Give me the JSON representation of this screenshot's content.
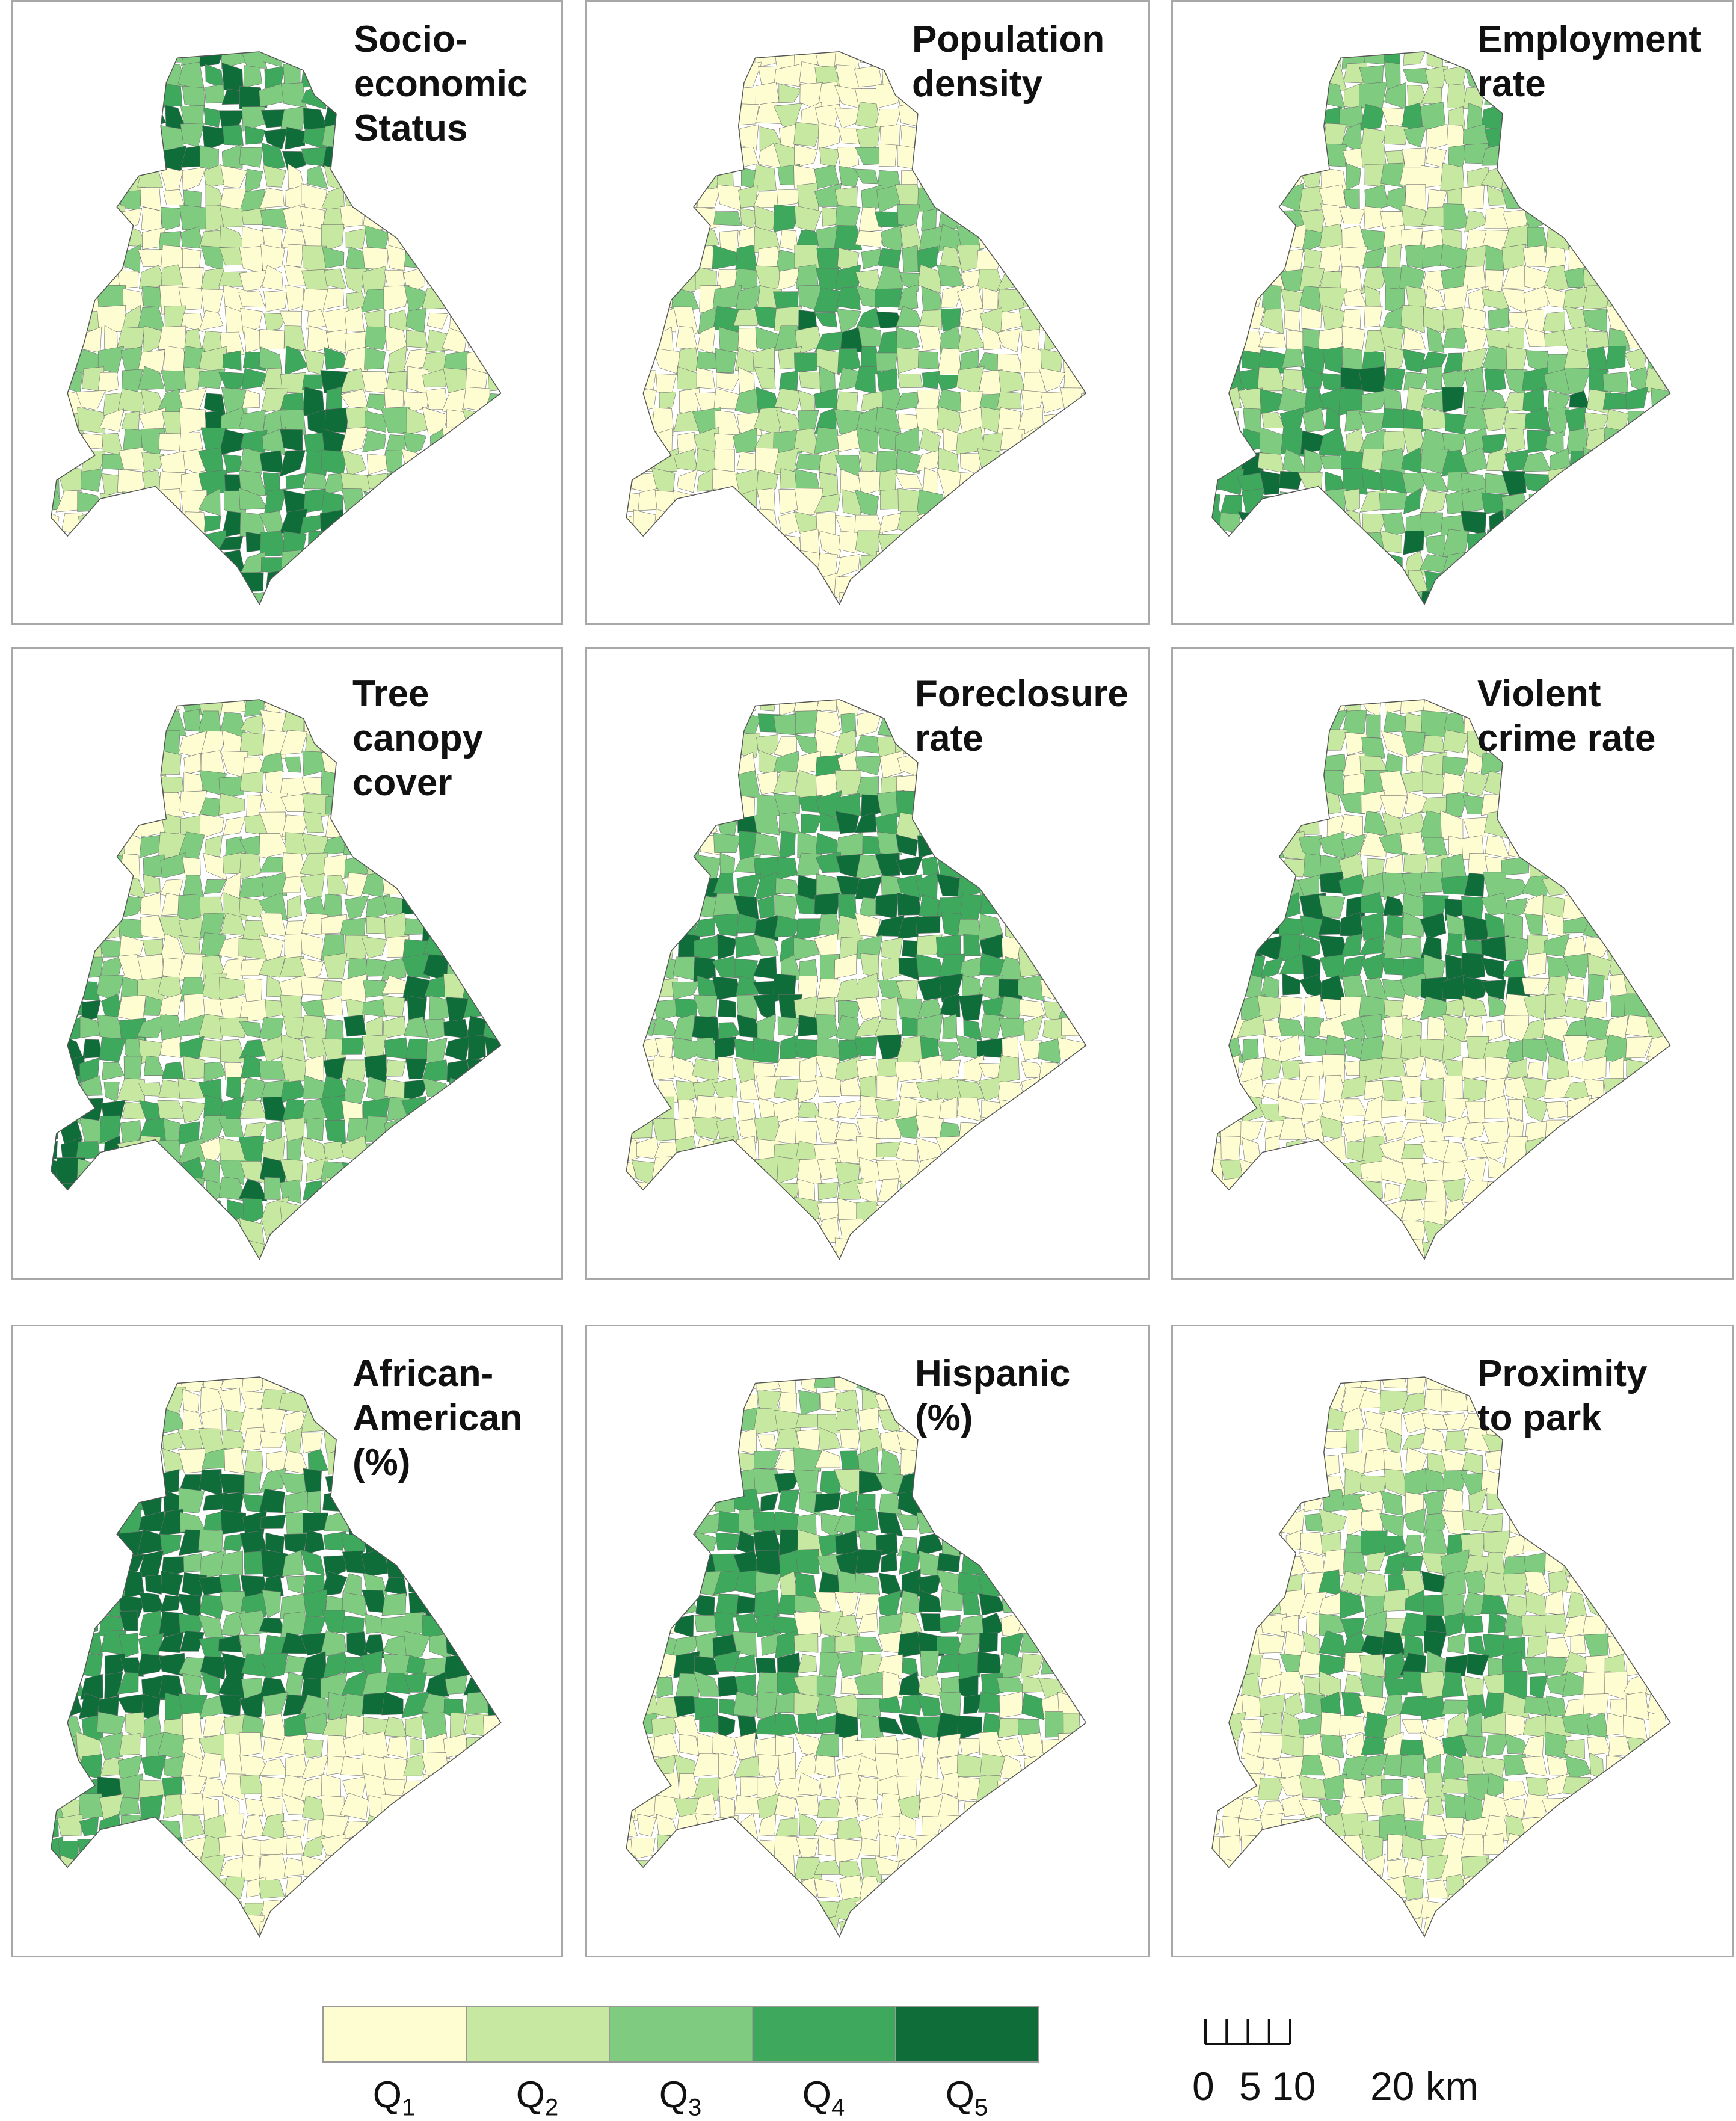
{
  "panels": [
    {
      "id": "ses",
      "title": "Socio-\neconomic\nStatus",
      "seed": 11,
      "pattern": "ses"
    },
    {
      "id": "popdens",
      "title": "Population\ndensity",
      "seed": 23,
      "pattern": "center"
    },
    {
      "id": "employment",
      "title": "Employment\nrate",
      "seed": 37,
      "pattern": "south"
    },
    {
      "id": "canopy",
      "title": "Tree\ncanopy\ncover",
      "seed": 41,
      "pattern": "canopy"
    },
    {
      "id": "foreclosure",
      "title": "Foreclosure\nrate",
      "seed": 53,
      "pattern": "ring"
    },
    {
      "id": "crime",
      "title": "Violent\ncrime rate",
      "seed": 67,
      "pattern": "centerwest"
    },
    {
      "id": "african_american",
      "title": "African-\nAmerican\n(%)",
      "seed": 71,
      "pattern": "westnorth"
    },
    {
      "id": "hispanic",
      "title": "Hispanic\n(%)",
      "seed": 83,
      "pattern": "ring"
    },
    {
      "id": "park",
      "title": "Proximity\nto park",
      "seed": 97,
      "pattern": "center"
    }
  ],
  "legend": {
    "classes": [
      {
        "main": "Q",
        "sub": "1",
        "color": "#fefdd2"
      },
      {
        "main": "Q",
        "sub": "2",
        "color": "#c7e8a0"
      },
      {
        "main": "Q",
        "sub": "3",
        "color": "#7fcb80"
      },
      {
        "main": "Q",
        "sub": "4",
        "color": "#3ea85c"
      },
      {
        "main": "Q",
        "sub": "5",
        "color": "#0f6d3a"
      }
    ]
  },
  "scalebar": {
    "tick_values_km": [
      0,
      5,
      10,
      15,
      20
    ],
    "labels": [
      "0",
      "5",
      "10",
      "20 km"
    ]
  },
  "colors": {
    "boundary": "#6e6e6e",
    "panel_border": "#a8a8a8"
  }
}
